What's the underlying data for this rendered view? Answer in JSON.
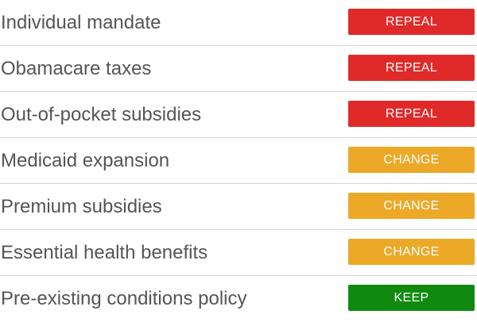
{
  "colors": {
    "repeal": "#e02a2a",
    "change": "#eca928",
    "keep": "#0f8a0f"
  },
  "rows": [
    {
      "policy": "Individual mandate",
      "action": "REPEAL",
      "status": "repeal"
    },
    {
      "policy": "Obamacare taxes",
      "action": "REPEAL",
      "status": "repeal"
    },
    {
      "policy": "Out-of-pocket subsidies",
      "action": "REPEAL",
      "status": "repeal"
    },
    {
      "policy": "Medicaid expansion",
      "action": "CHANGE",
      "status": "change"
    },
    {
      "policy": "Premium subsidies",
      "action": "CHANGE",
      "status": "change"
    },
    {
      "policy": "Essential health benefits",
      "action": "CHANGE",
      "status": "change"
    },
    {
      "policy": "Pre-existing conditions policy",
      "action": "KEEP",
      "status": "keep"
    }
  ]
}
